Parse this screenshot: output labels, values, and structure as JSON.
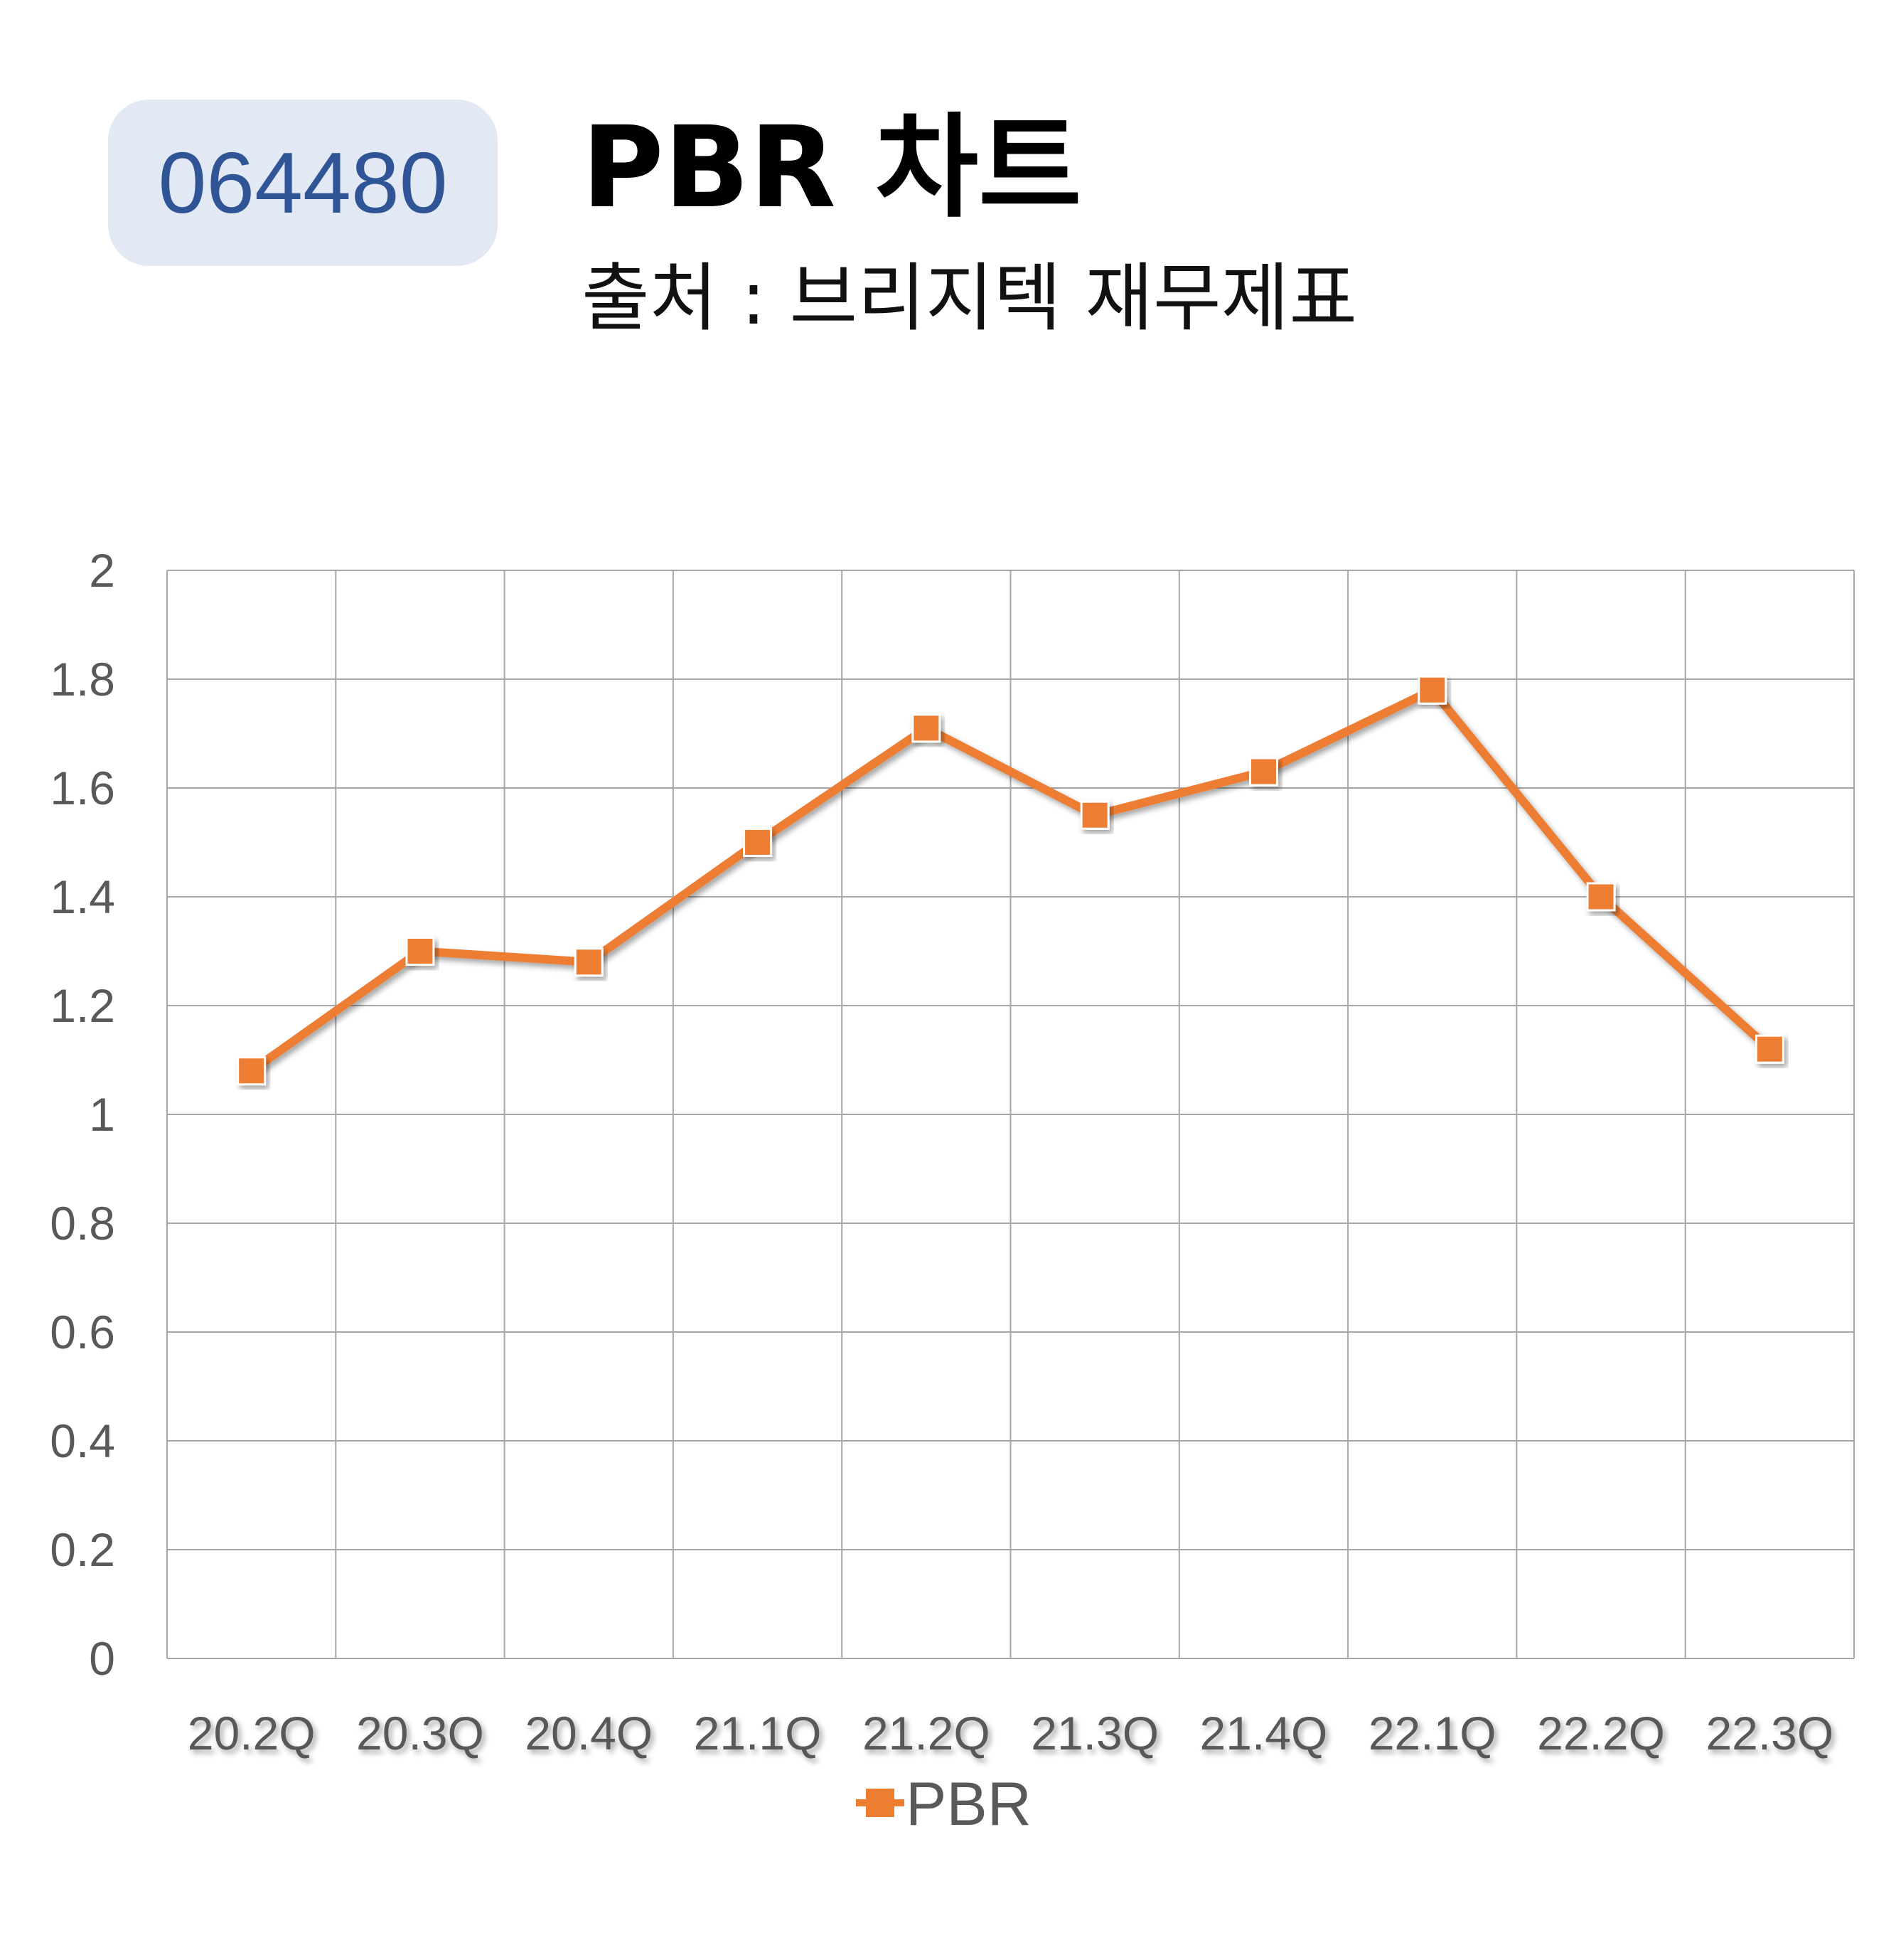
{
  "header": {
    "code": "064480",
    "title": "PBR 차트",
    "subtitle": "출처 : 브리지텍 재무제표"
  },
  "colors": {
    "series": "#ed7d31",
    "badge_bg": "#e2e8f4",
    "badge_text": "#2f5597",
    "grid": "#a6a6a6",
    "tick_text": "#595959"
  },
  "chart_data": {
    "type": "line",
    "categories": [
      "20.2Q",
      "20.3Q",
      "20.4Q",
      "21.1Q",
      "21.2Q",
      "21.3Q",
      "21.4Q",
      "22.1Q",
      "22.2Q",
      "22.3Q"
    ],
    "series": [
      {
        "name": "PBR",
        "values": [
          1.08,
          1.3,
          1.28,
          1.5,
          1.71,
          1.55,
          1.63,
          1.78,
          1.4,
          1.12
        ],
        "marker": "square"
      }
    ],
    "ylim": [
      0,
      2
    ],
    "yticks": [
      "0",
      "0.2",
      "0.4",
      "0.6",
      "0.8",
      "1",
      "1.2",
      "1.4",
      "1.6",
      "1.8",
      "2"
    ],
    "grid": true,
    "legend": "bottom"
  }
}
